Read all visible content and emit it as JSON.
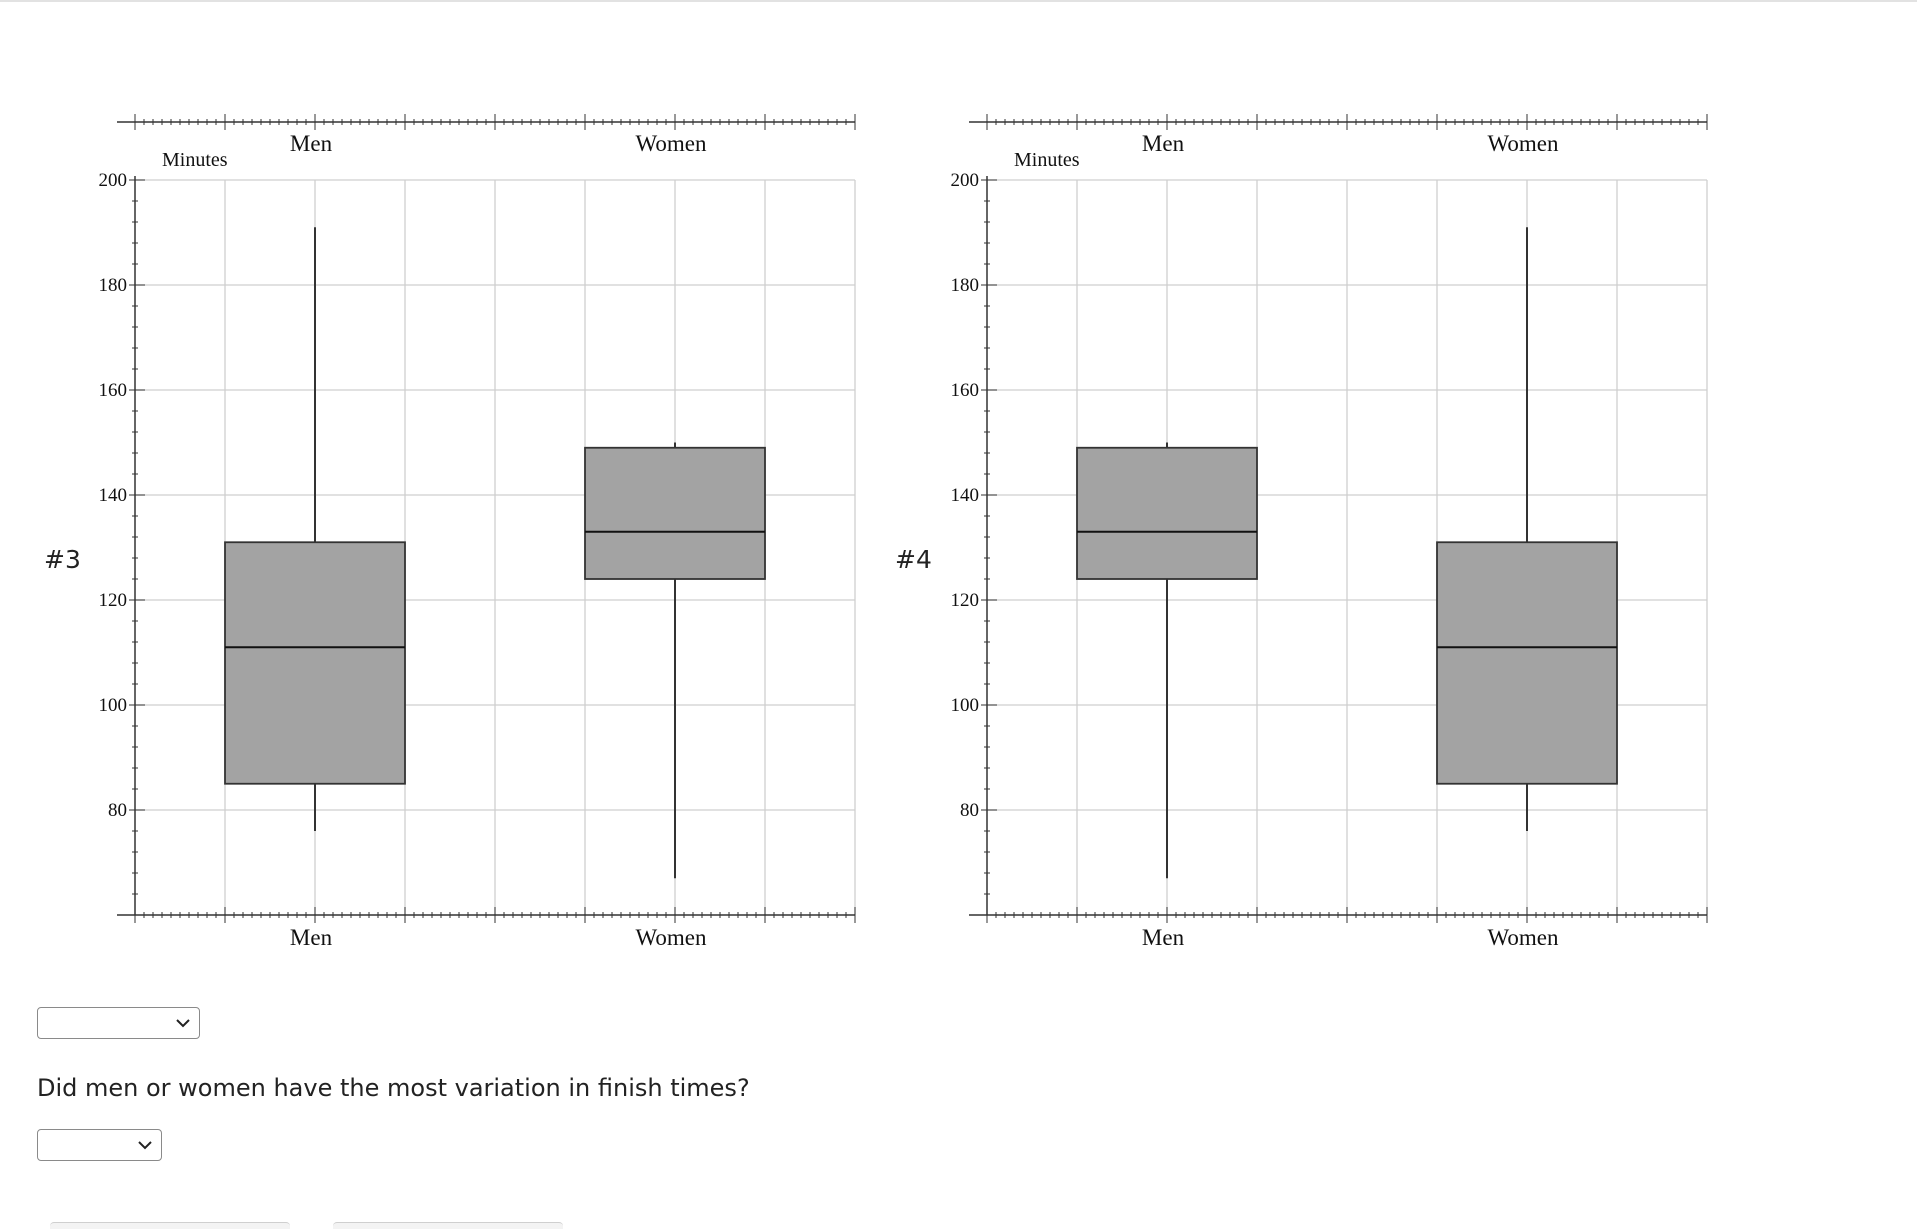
{
  "plots": [
    {
      "label": "#3",
      "axis_title": "Minutes",
      "categories": [
        "Men",
        "Women"
      ],
      "y_ticks": [
        "200",
        "180",
        "160",
        "140",
        "120",
        "100",
        "80"
      ]
    },
    {
      "label": "#4",
      "axis_title": "Minutes",
      "categories": [
        "Men",
        "Women"
      ],
      "y_ticks": [
        "200",
        "180",
        "160",
        "140",
        "120",
        "100",
        "80"
      ]
    }
  ],
  "chart_data": [
    {
      "type": "boxplot",
      "ylabel": "Minutes",
      "ylim": [
        60,
        200
      ],
      "categories": [
        "Men",
        "Women"
      ],
      "boxes": [
        {
          "category": "Men",
          "min": 76,
          "q1": 85,
          "median": 111,
          "q3": 131,
          "max": 191
        },
        {
          "category": "Women",
          "min": 67,
          "q1": 124,
          "median": 133,
          "q3": 149,
          "max": 150
        }
      ],
      "grid": true
    },
    {
      "type": "boxplot",
      "ylabel": "Minutes",
      "ylim": [
        60,
        200
      ],
      "categories": [
        "Men",
        "Women"
      ],
      "boxes": [
        {
          "category": "Men",
          "min": 67,
          "q1": 124,
          "median": 133,
          "q3": 149,
          "max": 150
        },
        {
          "category": "Women",
          "min": 76,
          "q1": 85,
          "median": 111,
          "q3": 131,
          "max": 191
        }
      ],
      "grid": true
    }
  ],
  "colors": {
    "box_fill": "#a3a3a3",
    "grid": "#cfcfcf",
    "axis": "#333333"
  },
  "selects": [
    {
      "value": ""
    },
    {
      "value": ""
    }
  ],
  "question": "Did men or women have the most variation in finish times?"
}
